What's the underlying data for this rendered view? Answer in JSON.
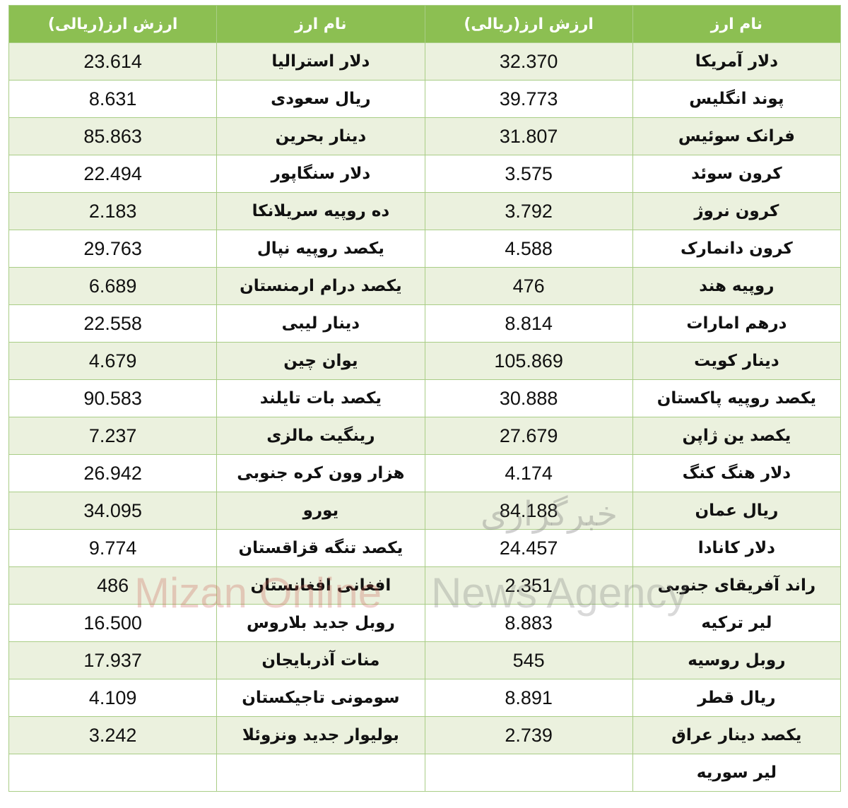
{
  "headers": {
    "name": "نام ارز",
    "value": "ارزش ارز(ریالی)"
  },
  "rows": [
    {
      "r_name": "دلار آمریکا",
      "r_val": "32.370",
      "l_name": "دلار استرالیا",
      "l_val": "23.614"
    },
    {
      "r_name": "پوند انگلیس",
      "r_val": "39.773",
      "l_name": "ریال سعودی",
      "l_val": "8.631"
    },
    {
      "r_name": "فرانک سوئیس",
      "r_val": "31.807",
      "l_name": "دینار بحرین",
      "l_val": "85.863"
    },
    {
      "r_name": "کرون سوئد",
      "r_val": "3.575",
      "l_name": "دلار سنگاپور",
      "l_val": "22.494"
    },
    {
      "r_name": "کرون نروژ",
      "r_val": "3.792",
      "l_name": "ده روپیه سریلانکا",
      "l_val": "2.183"
    },
    {
      "r_name": "کرون دانمارک",
      "r_val": "4.588",
      "l_name": "یکصد روپیه نپال",
      "l_val": "29.763"
    },
    {
      "r_name": "روپیه هند",
      "r_val": "476",
      "l_name": "یکصد درام ارمنستان",
      "l_val": "6.689"
    },
    {
      "r_name": "درهم امارات",
      "r_val": "8.814",
      "l_name": "دینار لیبی",
      "l_val": "22.558"
    },
    {
      "r_name": "دینار کویت",
      "r_val": "105.869",
      "l_name": "یوان چین",
      "l_val": "4.679"
    },
    {
      "r_name": "یکصد روپیه پاکستان",
      "r_val": "30.888",
      "l_name": "یکصد بات تایلند",
      "l_val": "90.583"
    },
    {
      "r_name": "یکصد ین ژاپن",
      "r_val": "27.679",
      "l_name": "رینگیت مالزی",
      "l_val": "7.237"
    },
    {
      "r_name": "دلار هنگ کنگ",
      "r_val": "4.174",
      "l_name": "هزار وون کره جنوبی",
      "l_val": "26.942"
    },
    {
      "r_name": "ریال عمان",
      "r_val": "84.188",
      "l_name": "یورو",
      "l_val": "34.095"
    },
    {
      "r_name": "دلار کانادا",
      "r_val": "24.457",
      "l_name": "یکصد تنگه قزاقستان",
      "l_val": "9.774"
    },
    {
      "r_name": "راند آفریقای جنوبی",
      "r_val": "2.351",
      "l_name": "افغانی افغانستان",
      "l_val": "486"
    },
    {
      "r_name": "لیر ترکیه",
      "r_val": "8.883",
      "l_name": "روبل جدید بلاروس",
      "l_val": "16.500"
    },
    {
      "r_name": "روبل روسیه",
      "r_val": "545",
      "l_name": "منات آذربایجان",
      "l_val": "17.937"
    },
    {
      "r_name": "ریال قطر",
      "r_val": "8.891",
      "l_name": "سومونی تاجیکستان",
      "l_val": "4.109"
    },
    {
      "r_name": "یکصد دینار عراق",
      "r_val": "2.739",
      "l_name": "بولیوار جدید ونزوئلا",
      "l_val": "3.242"
    },
    {
      "r_name": "لیر سوریه",
      "r_val": "",
      "l_name": "",
      "l_val": ""
    }
  ],
  "watermark": {
    "latin_a": "Mizan Online",
    "latin_b": "News Agency",
    "persian": "خبرگزاری"
  }
}
